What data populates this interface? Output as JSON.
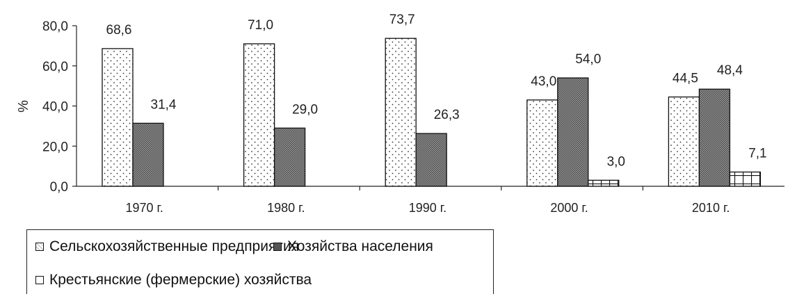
{
  "chart_data": {
    "type": "bar",
    "ylabel": "%",
    "ylim": [
      0,
      80
    ],
    "yticks": [
      "0,0",
      "20,0",
      "40,0",
      "60,0",
      "80,0"
    ],
    "categories": [
      "1970 г.",
      "1980 г.",
      "1990 г.",
      "2000 г.",
      "2010 г."
    ],
    "series": [
      {
        "name": "Сельскохозяйственные предприятия",
        "pattern": "dots",
        "values": [
          68.6,
          71.0,
          73.7,
          43.0,
          44.5
        ],
        "labels": [
          "68,6",
          "71,0",
          "73,7",
          "43,0",
          "44,5"
        ]
      },
      {
        "name": "Хозяйства населения",
        "pattern": "dark",
        "values": [
          31.4,
          29.0,
          26.3,
          54.0,
          48.4
        ],
        "labels": [
          "31,4",
          "29,0",
          "26,3",
          "54,0",
          "48,4"
        ]
      },
      {
        "name": "Крестьянские (фермерские) хозяйства",
        "pattern": "bricks",
        "values": [
          null,
          null,
          null,
          3.0,
          7.1
        ],
        "labels": [
          null,
          null,
          null,
          "3,0",
          "7,1"
        ]
      }
    ],
    "legend_position": "bottom",
    "grid": false
  }
}
